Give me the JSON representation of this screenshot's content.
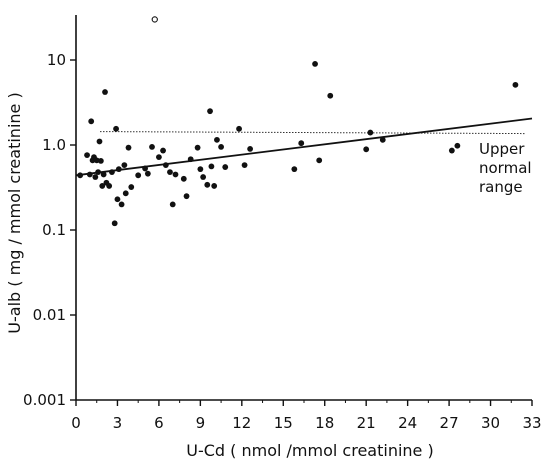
{
  "chart_data": {
    "type": "scatter",
    "title": "",
    "xlabel": "U-Cd ( nmol /mmol creatinine )",
    "ylabel": "U-alb ( mg / mmol creatinine )",
    "xlim": [
      0,
      33
    ],
    "ylim": [
      0.001,
      30
    ],
    "y_scale": "log",
    "grid": false,
    "x_ticks": [
      0,
      3,
      6,
      9,
      12,
      15,
      18,
      21,
      24,
      27,
      30,
      33
    ],
    "x_tick_labels": [
      "0",
      "3",
      "6",
      "9",
      "12",
      "15",
      "18",
      "21",
      "24",
      "27",
      "30",
      "33"
    ],
    "y_ticks": [
      0.001,
      0.01,
      0.1,
      1.0,
      10
    ],
    "y_tick_labels": [
      "0.001",
      "0.01",
      "0.1",
      "1.0",
      "10"
    ],
    "upper_normal_range": 1.4,
    "annotation": [
      "Upper",
      "normal",
      "range"
    ],
    "regression_line": {
      "x": [
        0,
        33
      ],
      "y": [
        0.44,
        2.05
      ]
    },
    "series": [
      {
        "marker": "filled",
        "points": [
          [
            0.3,
            0.44
          ],
          [
            0.8,
            0.76
          ],
          [
            1.0,
            0.45
          ],
          [
            1.1,
            1.9
          ],
          [
            1.2,
            0.66
          ],
          [
            1.3,
            0.72
          ],
          [
            1.4,
            0.42
          ],
          [
            1.5,
            0.66
          ],
          [
            1.6,
            0.48
          ],
          [
            1.7,
            1.1
          ],
          [
            1.8,
            0.65
          ],
          [
            1.9,
            0.33
          ],
          [
            2.0,
            0.45
          ],
          [
            2.1,
            4.2
          ],
          [
            2.2,
            0.36
          ],
          [
            2.4,
            0.33
          ],
          [
            2.6,
            0.48
          ],
          [
            2.8,
            0.12
          ],
          [
            2.9,
            1.55
          ],
          [
            3.0,
            0.23
          ],
          [
            3.1,
            0.52
          ],
          [
            3.3,
            0.2
          ],
          [
            3.5,
            0.58
          ],
          [
            3.6,
            0.27
          ],
          [
            3.8,
            0.93
          ],
          [
            4.0,
            0.32
          ],
          [
            4.5,
            0.44
          ],
          [
            5.0,
            0.53
          ],
          [
            5.2,
            0.46
          ],
          [
            5.5,
            0.95
          ],
          [
            6.0,
            0.72
          ],
          [
            6.3,
            0.86
          ],
          [
            6.5,
            0.58
          ],
          [
            6.8,
            0.48
          ],
          [
            7.0,
            0.2
          ],
          [
            7.2,
            0.45
          ],
          [
            7.8,
            0.4
          ],
          [
            8.0,
            0.25
          ],
          [
            8.3,
            0.68
          ],
          [
            8.8,
            0.93
          ],
          [
            9.0,
            0.52
          ],
          [
            9.2,
            0.42
          ],
          [
            9.5,
            0.34
          ],
          [
            9.7,
            2.5
          ],
          [
            9.8,
            0.56
          ],
          [
            10.0,
            0.33
          ],
          [
            10.2,
            1.15
          ],
          [
            10.5,
            0.95
          ],
          [
            10.8,
            0.55
          ],
          [
            11.8,
            1.55
          ],
          [
            12.2,
            0.58
          ],
          [
            12.6,
            0.9
          ],
          [
            15.8,
            0.52
          ],
          [
            16.3,
            1.05
          ],
          [
            17.3,
            9.0
          ],
          [
            17.6,
            0.66
          ],
          [
            18.4,
            3.8
          ],
          [
            21.0,
            0.89
          ],
          [
            21.3,
            1.4
          ],
          [
            22.2,
            1.15
          ],
          [
            27.2,
            0.86
          ],
          [
            27.6,
            0.98
          ],
          [
            31.8,
            5.1
          ]
        ]
      },
      {
        "marker": "open",
        "points": [
          [
            5.7,
            30
          ]
        ]
      }
    ]
  }
}
